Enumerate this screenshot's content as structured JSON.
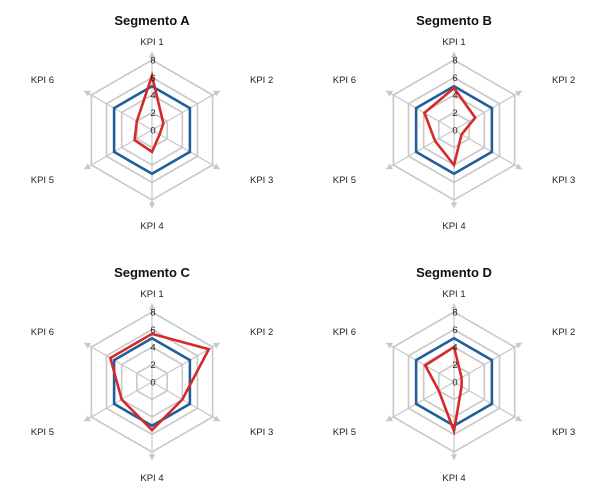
{
  "chart_data": [
    {
      "type": "radar",
      "title": "Segmento A",
      "axes": [
        "KPI 1",
        "KPI 2",
        "KPI 3",
        "KPI 4",
        "KPI 5",
        "KPI 6"
      ],
      "ticks": [
        0,
        2,
        4,
        6,
        8
      ],
      "rlim": [
        0,
        8
      ],
      "series": [
        {
          "color": "#1f5f9a",
          "values": [
            5,
            5,
            5,
            5,
            5,
            5
          ]
        },
        {
          "color": "#d62a2a",
          "values": [
            6.2,
            1.5,
            1.0,
            2.5,
            2.3,
            2.0
          ]
        }
      ]
    },
    {
      "type": "radar",
      "title": "Segmento B",
      "axes": [
        "KPI 1",
        "KPI 2",
        "KPI 3",
        "KPI 4",
        "KPI 5",
        "KPI 6"
      ],
      "ticks": [
        0,
        2,
        4,
        6,
        8
      ],
      "rlim": [
        0,
        8
      ],
      "series": [
        {
          "color": "#1f5f9a",
          "values": [
            5,
            5,
            5,
            5,
            5,
            5
          ]
        },
        {
          "color": "#d62a2a",
          "values": [
            4.8,
            2.8,
            1.0,
            4.0,
            2.5,
            3.9
          ]
        }
      ]
    },
    {
      "type": "radar",
      "title": "Segmento C",
      "axes": [
        "KPI 1",
        "KPI 2",
        "KPI 3",
        "KPI 4",
        "KPI 5",
        "KPI 6"
      ],
      "ticks": [
        0,
        2,
        4,
        6,
        8
      ],
      "rlim": [
        0,
        8
      ],
      "series": [
        {
          "color": "#1f5f9a",
          "values": [
            5,
            5,
            5,
            5,
            5,
            5
          ]
        },
        {
          "color": "#d62a2a",
          "values": [
            5.5,
            7.5,
            4.0,
            5.5,
            4.0,
            5.5
          ]
        }
      ]
    },
    {
      "type": "radar",
      "title": "Segmento D",
      "axes": [
        "KPI 1",
        "KPI 2",
        "KPI 3",
        "KPI 4",
        "KPI 5",
        "KPI 6"
      ],
      "ticks": [
        0,
        2,
        4,
        6,
        8
      ],
      "rlim": [
        0,
        8
      ],
      "series": [
        {
          "color": "#1f5f9a",
          "values": [
            5,
            5,
            5,
            5,
            5,
            5
          ]
        },
        {
          "color": "#d62a2a",
          "values": [
            4.0,
            1.0,
            1.0,
            5.6,
            2.0,
            3.8
          ]
        }
      ]
    }
  ]
}
